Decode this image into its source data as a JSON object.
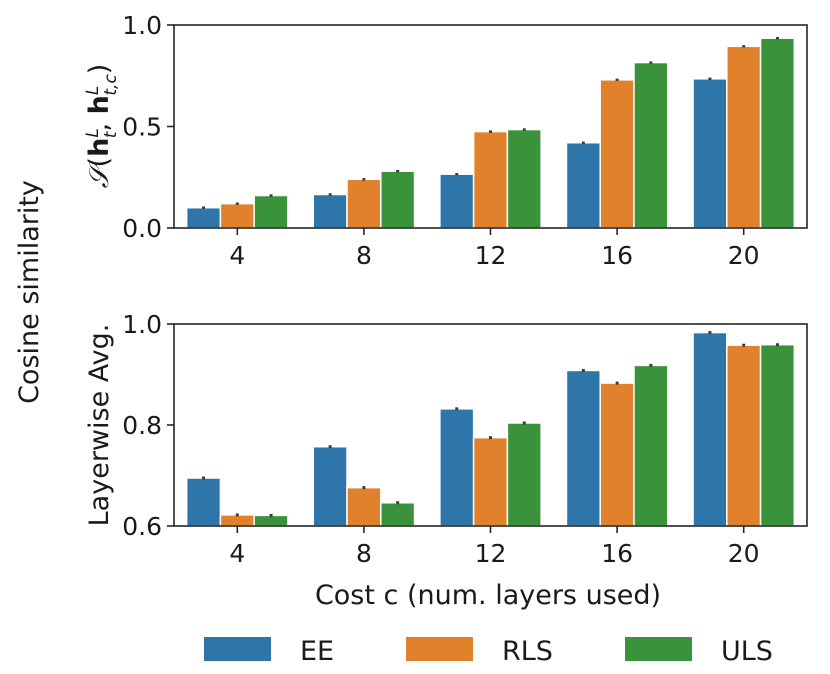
{
  "shared_ylabel": "Cosine similarity",
  "legend": [
    {
      "name": "EE",
      "color": "#2e75aa"
    },
    {
      "name": "RLS",
      "color": "#e1812c"
    },
    {
      "name": "ULS",
      "color": "#3a923a"
    }
  ],
  "chart_data": [
    {
      "type": "bar",
      "categories": [
        "4",
        "8",
        "12",
        "16",
        "20"
      ],
      "series": [
        {
          "name": "EE",
          "values": [
            0.1,
            0.165,
            0.265,
            0.42,
            0.735
          ],
          "errors": [
            0.006,
            0.006,
            0.006,
            0.006,
            0.006
          ]
        },
        {
          "name": "RLS",
          "values": [
            0.12,
            0.24,
            0.475,
            0.73,
            0.895
          ],
          "errors": [
            0.006,
            0.006,
            0.006,
            0.006,
            0.006
          ]
        },
        {
          "name": "ULS",
          "values": [
            0.16,
            0.28,
            0.485,
            0.815,
            0.935
          ],
          "errors": [
            0.006,
            0.006,
            0.006,
            0.006,
            0.006
          ]
        }
      ],
      "ylabel": "S(h_t^L, h_{t,c}^L)",
      "xlabel": "",
      "ylim": [
        0.0,
        1.0
      ],
      "yticks": [
        0.0,
        0.5,
        1.0
      ],
      "ytick_labels": [
        "0.0",
        "0.5",
        "1.0"
      ]
    },
    {
      "type": "bar",
      "categories": [
        "4",
        "8",
        "12",
        "16",
        "20"
      ],
      "series": [
        {
          "name": "EE",
          "values": [
            0.695,
            0.757,
            0.832,
            0.908,
            0.983
          ],
          "errors": [
            0.003,
            0.003,
            0.003,
            0.003,
            0.003
          ]
        },
        {
          "name": "RLS",
          "values": [
            0.622,
            0.676,
            0.775,
            0.883,
            0.958
          ],
          "errors": [
            0.003,
            0.003,
            0.003,
            0.003,
            0.003
          ]
        },
        {
          "name": "ULS",
          "values": [
            0.621,
            0.646,
            0.804,
            0.918,
            0.959
          ],
          "errors": [
            0.003,
            0.003,
            0.003,
            0.003,
            0.003
          ]
        }
      ],
      "ylabel": "Layerwise Avg.",
      "xlabel": "Cost c (num. layers used)",
      "ylim": [
        0.6,
        1.0
      ],
      "yticks": [
        0.6,
        0.8,
        1.0
      ],
      "ytick_labels": [
        "0.6",
        "0.8",
        "1.0"
      ]
    }
  ]
}
